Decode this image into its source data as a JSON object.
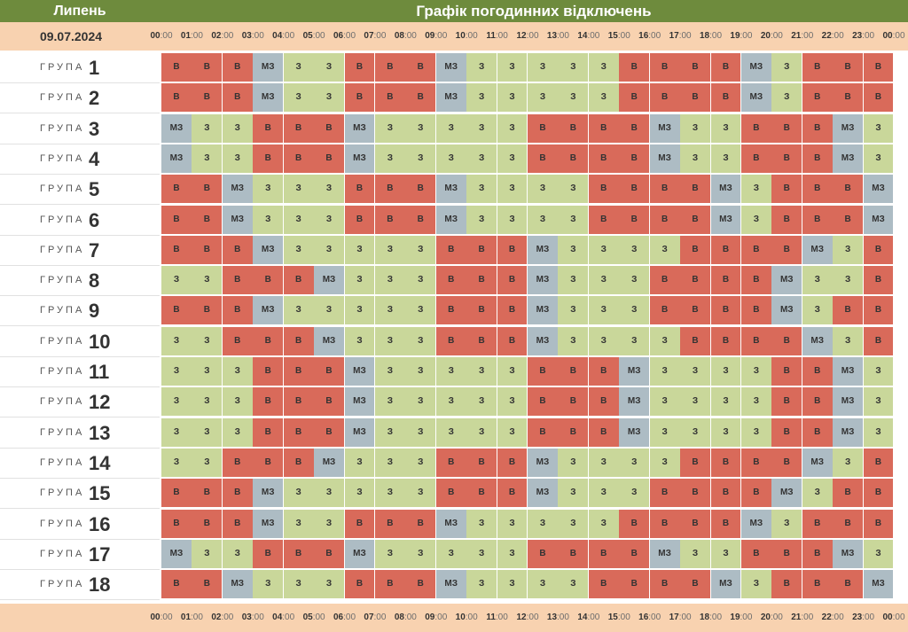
{
  "header": {
    "month": "Липень",
    "title": "Графік погодинних відключень"
  },
  "date": "09.07.2024",
  "group_word": "ГРУПА",
  "hours": [
    "00",
    "01",
    "02",
    "03",
    "04",
    "05",
    "06",
    "07",
    "08",
    "09",
    "10",
    "11",
    "12",
    "13",
    "14",
    "15",
    "16",
    "17",
    "18",
    "19",
    "20",
    "21",
    "22",
    "23",
    "00"
  ],
  "minutes": ":00",
  "state_labels": {
    "b": "В",
    "z": "З",
    "mz": "МЗ"
  },
  "state_colors": {
    "b": "#d96a5a",
    "z": "#c9d79a",
    "mz": "#adbcc4"
  },
  "groups": [
    {
      "number": "1",
      "cells": [
        "b",
        "b",
        "b",
        "mz",
        "z",
        "z",
        "b",
        "b",
        "b",
        "mz",
        "z",
        "z",
        "z",
        "z",
        "z",
        "b",
        "b",
        "b",
        "b",
        "mz",
        "z",
        "b",
        "b",
        "b"
      ]
    },
    {
      "number": "2",
      "cells": [
        "b",
        "b",
        "b",
        "mz",
        "z",
        "z",
        "b",
        "b",
        "b",
        "mz",
        "z",
        "z",
        "z",
        "z",
        "z",
        "b",
        "b",
        "b",
        "b",
        "mz",
        "z",
        "b",
        "b",
        "b"
      ]
    },
    {
      "number": "3",
      "cells": [
        "mz",
        "z",
        "z",
        "b",
        "b",
        "b",
        "mz",
        "z",
        "z",
        "z",
        "z",
        "z",
        "b",
        "b",
        "b",
        "b",
        "mz",
        "z",
        "z",
        "b",
        "b",
        "b",
        "mz",
        "z"
      ]
    },
    {
      "number": "4",
      "cells": [
        "mz",
        "z",
        "z",
        "b",
        "b",
        "b",
        "mz",
        "z",
        "z",
        "z",
        "z",
        "z",
        "b",
        "b",
        "b",
        "b",
        "mz",
        "z",
        "z",
        "b",
        "b",
        "b",
        "mz",
        "z"
      ]
    },
    {
      "number": "5",
      "cells": [
        "b",
        "b",
        "mz",
        "z",
        "z",
        "z",
        "b",
        "b",
        "b",
        "mz",
        "z",
        "z",
        "z",
        "z",
        "b",
        "b",
        "b",
        "b",
        "mz",
        "z",
        "b",
        "b",
        "b",
        "mz"
      ]
    },
    {
      "number": "6",
      "cells": [
        "b",
        "b",
        "mz",
        "z",
        "z",
        "z",
        "b",
        "b",
        "b",
        "mz",
        "z",
        "z",
        "z",
        "z",
        "b",
        "b",
        "b",
        "b",
        "mz",
        "z",
        "b",
        "b",
        "b",
        "mz"
      ]
    },
    {
      "number": "7",
      "cells": [
        "b",
        "b",
        "b",
        "mz",
        "z",
        "z",
        "z",
        "z",
        "z",
        "b",
        "b",
        "b",
        "mz",
        "z",
        "z",
        "z",
        "z",
        "b",
        "b",
        "b",
        "b",
        "mz",
        "z",
        "b"
      ]
    },
    {
      "number": "8",
      "cells": [
        "z",
        "z",
        "b",
        "b",
        "b",
        "mz",
        "z",
        "z",
        "z",
        "b",
        "b",
        "b",
        "mz",
        "z",
        "z",
        "z",
        "b",
        "b",
        "b",
        "b",
        "mz",
        "z",
        "z",
        "b"
      ]
    },
    {
      "number": "9",
      "cells": [
        "b",
        "b",
        "b",
        "mz",
        "z",
        "z",
        "z",
        "z",
        "z",
        "b",
        "b",
        "b",
        "mz",
        "z",
        "z",
        "z",
        "b",
        "b",
        "b",
        "b",
        "mz",
        "z",
        "b",
        "b"
      ]
    },
    {
      "number": "10",
      "cells": [
        "z",
        "z",
        "b",
        "b",
        "b",
        "mz",
        "z",
        "z",
        "z",
        "b",
        "b",
        "b",
        "mz",
        "z",
        "z",
        "z",
        "z",
        "b",
        "b",
        "b",
        "b",
        "mz",
        "z",
        "b"
      ]
    },
    {
      "number": "11",
      "cells": [
        "z",
        "z",
        "z",
        "b",
        "b",
        "b",
        "mz",
        "z",
        "z",
        "z",
        "z",
        "z",
        "b",
        "b",
        "b",
        "mz",
        "z",
        "z",
        "z",
        "z",
        "b",
        "b",
        "mz",
        "z"
      ]
    },
    {
      "number": "12",
      "cells": [
        "z",
        "z",
        "z",
        "b",
        "b",
        "b",
        "mz",
        "z",
        "z",
        "z",
        "z",
        "z",
        "b",
        "b",
        "b",
        "mz",
        "z",
        "z",
        "z",
        "z",
        "b",
        "b",
        "mz",
        "z"
      ]
    },
    {
      "number": "13",
      "cells": [
        "z",
        "z",
        "z",
        "b",
        "b",
        "b",
        "mz",
        "z",
        "z",
        "z",
        "z",
        "z",
        "b",
        "b",
        "b",
        "mz",
        "z",
        "z",
        "z",
        "z",
        "b",
        "b",
        "mz",
        "z"
      ]
    },
    {
      "number": "14",
      "cells": [
        "z",
        "z",
        "b",
        "b",
        "b",
        "mz",
        "z",
        "z",
        "z",
        "b",
        "b",
        "b",
        "mz",
        "z",
        "z",
        "z",
        "z",
        "b",
        "b",
        "b",
        "b",
        "mz",
        "z",
        "b"
      ]
    },
    {
      "number": "15",
      "cells": [
        "b",
        "b",
        "b",
        "mz",
        "z",
        "z",
        "z",
        "z",
        "z",
        "b",
        "b",
        "b",
        "mz",
        "z",
        "z",
        "z",
        "b",
        "b",
        "b",
        "b",
        "mz",
        "z",
        "b",
        "b"
      ]
    },
    {
      "number": "16",
      "cells": [
        "b",
        "b",
        "b",
        "mz",
        "z",
        "z",
        "b",
        "b",
        "b",
        "mz",
        "z",
        "z",
        "z",
        "z",
        "z",
        "b",
        "b",
        "b",
        "b",
        "mz",
        "z",
        "b",
        "b",
        "b"
      ]
    },
    {
      "number": "17",
      "cells": [
        "mz",
        "z",
        "z",
        "b",
        "b",
        "b",
        "mz",
        "z",
        "z",
        "z",
        "z",
        "z",
        "b",
        "b",
        "b",
        "b",
        "mz",
        "z",
        "z",
        "b",
        "b",
        "b",
        "mz",
        "z"
      ]
    },
    {
      "number": "18",
      "cells": [
        "b",
        "b",
        "mz",
        "z",
        "z",
        "z",
        "b",
        "b",
        "b",
        "mz",
        "z",
        "z",
        "z",
        "z",
        "b",
        "b",
        "b",
        "b",
        "mz",
        "z",
        "b",
        "b",
        "b",
        "mz"
      ]
    }
  ]
}
